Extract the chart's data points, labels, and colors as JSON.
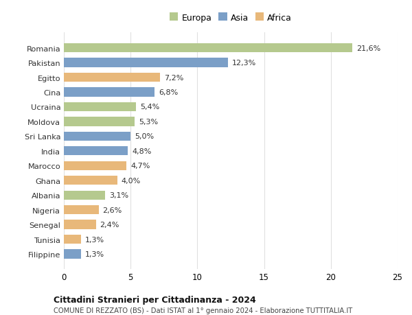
{
  "countries": [
    "Romania",
    "Pakistan",
    "Egitto",
    "Cina",
    "Ucraina",
    "Moldova",
    "Sri Lanka",
    "India",
    "Marocco",
    "Ghana",
    "Albania",
    "Nigeria",
    "Senegal",
    "Tunisia",
    "Filippine"
  ],
  "values": [
    21.6,
    12.3,
    7.2,
    6.8,
    5.4,
    5.3,
    5.0,
    4.8,
    4.7,
    4.0,
    3.1,
    2.6,
    2.4,
    1.3,
    1.3
  ],
  "continents": [
    "Europa",
    "Asia",
    "Africa",
    "Asia",
    "Europa",
    "Europa",
    "Asia",
    "Asia",
    "Africa",
    "Africa",
    "Europa",
    "Africa",
    "Africa",
    "Africa",
    "Asia"
  ],
  "colors": {
    "Europa": "#b5c98e",
    "Asia": "#7b9fc7",
    "Africa": "#e8b87a"
  },
  "title": "Cittadini Stranieri per Cittadinanza - 2024",
  "subtitle": "COMUNE DI REZZATO (BS) - Dati ISTAT al 1° gennaio 2024 - Elaborazione TUTTITALIA.IT",
  "xlim": [
    0,
    25
  ],
  "xticks": [
    0,
    5,
    10,
    15,
    20,
    25
  ],
  "background_color": "#ffffff",
  "grid_color": "#e0e0e0"
}
